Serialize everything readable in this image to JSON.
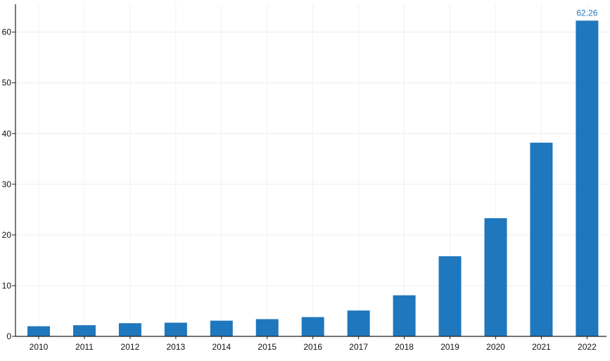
{
  "chart_data": {
    "type": "bar",
    "title": "",
    "xlabel": "",
    "ylabel": "",
    "categories": [
      "2010",
      "2011",
      "2012",
      "2013",
      "2014",
      "2015",
      "2016",
      "2017",
      "2018",
      "2019",
      "2020",
      "2021",
      "2022"
    ],
    "values": [
      2.0,
      2.2,
      2.6,
      2.7,
      3.1,
      3.4,
      3.8,
      5.1,
      8.1,
      15.8,
      23.3,
      38.2,
      62.26
    ],
    "ylim": [
      0,
      65.5
    ],
    "yticks": [
      0,
      10,
      20,
      30,
      40,
      50,
      60
    ],
    "grid": true,
    "legend": "none",
    "bar_color": "#1f77bd",
    "label_color": "#1f77bd",
    "data_labels": [
      {
        "category": "2022",
        "text": "62.26"
      }
    ]
  }
}
